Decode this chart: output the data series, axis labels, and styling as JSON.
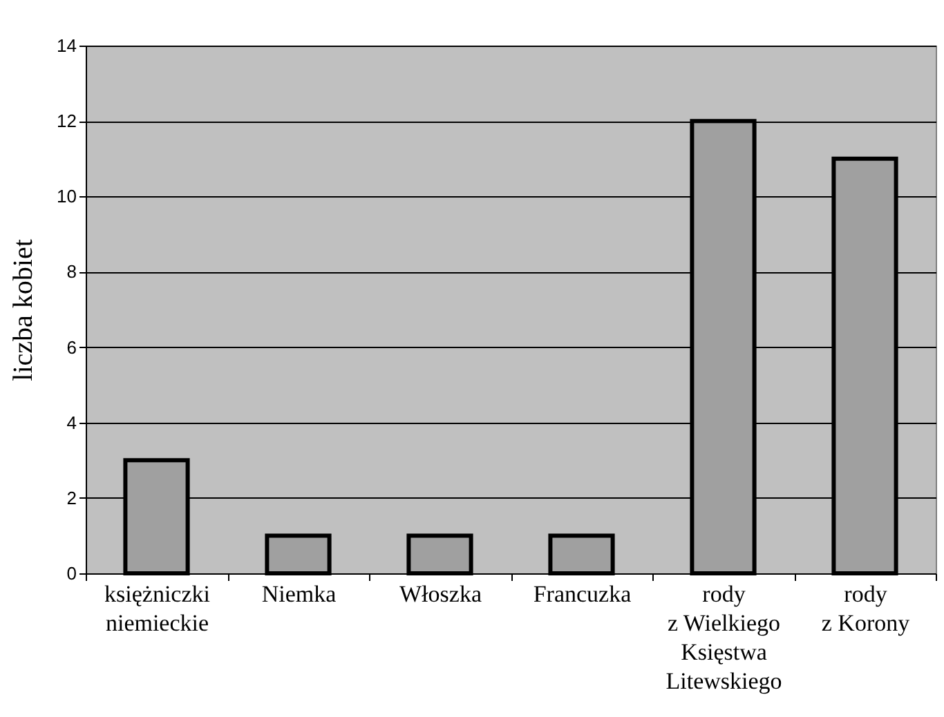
{
  "chart_data": {
    "type": "bar",
    "ylabel": "liczba kobiet",
    "categories": [
      "księżniczki\nniemieckie",
      "Niemka",
      "Włoszka",
      "Francuzka",
      "rody\nz Wielkiego\nKsięstwa\nLitewskiego",
      "rody\nz Korony"
    ],
    "values": [
      3,
      1,
      1,
      1,
      12,
      11
    ],
    "color": "#a0a0a0",
    "ylim": [
      0,
      14
    ],
    "yticks": [
      0,
      2,
      4,
      6,
      8,
      10,
      12,
      14
    ],
    "grid": "y"
  }
}
